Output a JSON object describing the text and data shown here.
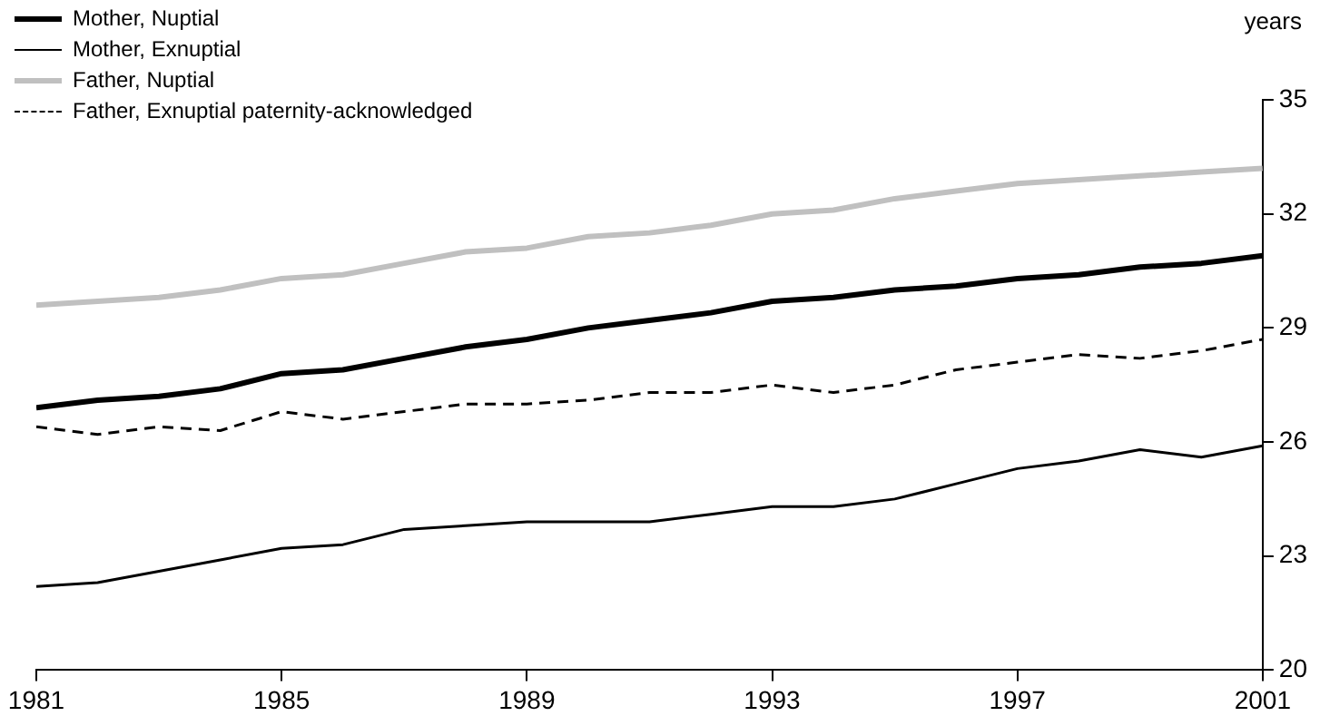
{
  "chart_data": {
    "type": "line",
    "ylabel": "years",
    "x": [
      1981,
      1982,
      1983,
      1984,
      1985,
      1986,
      1987,
      1988,
      1989,
      1990,
      1991,
      1992,
      1993,
      1994,
      1995,
      1996,
      1997,
      1998,
      1999,
      2000,
      2001
    ],
    "xlim": [
      1981,
      2001
    ],
    "xticks": [
      1981,
      1985,
      1989,
      1993,
      1997,
      2001
    ],
    "ylim": [
      20,
      35
    ],
    "yticks": [
      20,
      23,
      26,
      29,
      32,
      35
    ],
    "grid": false,
    "legend": "top left",
    "marker": "none",
    "series": [
      {
        "name": "Mother, Nuptial",
        "color": "#000000",
        "line_style": "solid",
        "values": [
          26.9,
          27.1,
          27.2,
          27.4,
          27.8,
          27.9,
          28.2,
          28.5,
          28.7,
          29.0,
          29.2,
          29.4,
          29.7,
          29.8,
          30.0,
          30.1,
          30.3,
          30.4,
          30.6,
          30.7,
          30.9
        ]
      },
      {
        "name": "Mother, Exnuptial",
        "color": "#000000",
        "line_style": "solid",
        "values": [
          22.2,
          22.3,
          22.6,
          22.9,
          23.2,
          23.3,
          23.7,
          23.8,
          23.9,
          23.9,
          23.9,
          24.1,
          24.3,
          24.3,
          24.5,
          24.9,
          25.3,
          25.5,
          25.8,
          25.6,
          25.9
        ]
      },
      {
        "name": "Father, Nuptial",
        "color": "#c0c0c0",
        "line_style": "solid",
        "values": [
          29.6,
          29.7,
          29.8,
          30.0,
          30.3,
          30.4,
          30.7,
          31.0,
          31.1,
          31.4,
          31.5,
          31.7,
          32.0,
          32.1,
          32.4,
          32.6,
          32.8,
          32.9,
          33.0,
          33.1,
          33.2
        ]
      },
      {
        "name": "Father, Exnuptial paternity-acknowledged",
        "color": "#000000",
        "line_style": "dashed",
        "values": [
          26.4,
          26.2,
          26.4,
          26.3,
          26.8,
          26.6,
          26.8,
          27.0,
          27.0,
          27.1,
          27.3,
          27.3,
          27.5,
          27.3,
          27.5,
          27.9,
          28.1,
          28.3,
          28.2,
          28.4,
          28.7
        ]
      }
    ]
  }
}
